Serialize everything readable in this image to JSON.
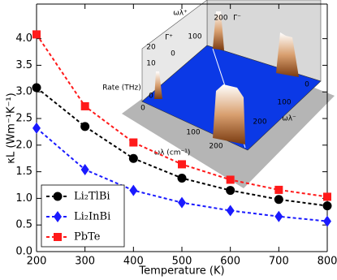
{
  "chart_data": {
    "type": "line",
    "xlabel": "Temperature (K)",
    "ylabel": "κL (Wm⁻¹K⁻¹)",
    "x": [
      200,
      300,
      400,
      500,
      600,
      700,
      800
    ],
    "xlim": [
      200,
      800
    ],
    "xticks": [
      200,
      300,
      400,
      500,
      600,
      700,
      800
    ],
    "ylim": [
      0,
      4.65
    ],
    "yticks": [
      {
        "value": 0,
        "label": "0.0"
      },
      0.5,
      {
        "value": 1,
        "label": "1.0"
      },
      1.5,
      {
        "value": 2,
        "label": "2.0"
      },
      2.5,
      {
        "value": 3,
        "label": "3.0"
      },
      3.5,
      {
        "value": 4,
        "label": "4.0"
      }
    ],
    "legend": "lower left",
    "series": [
      {
        "name": "Li₂TlBi",
        "color": "#000000",
        "marker": "circle",
        "values": [
          3.08,
          2.35,
          1.75,
          1.38,
          1.15,
          0.98,
          0.86
        ]
      },
      {
        "name": "Li₂InBi",
        "color": "#1a1aff",
        "marker": "diamond",
        "values": [
          2.32,
          1.54,
          1.15,
          0.92,
          0.77,
          0.66,
          0.57
        ]
      },
      {
        "name": "PbTe",
        "color": "#ff1a1a",
        "marker": "square",
        "values": [
          4.08,
          2.73,
          2.05,
          1.64,
          1.35,
          1.16,
          1.03
        ]
      }
    ],
    "inset_labels": [
      "ωλ⁺",
      "200",
      "100",
      "0",
      "Γ⁺",
      "Γ⁻",
      "Rate (THz)",
      "20",
      "10",
      "0",
      "ωλ (cm⁻¹)",
      "0",
      "100",
      "200",
      "ωλ⁻",
      "0",
      "100",
      "200"
    ]
  }
}
